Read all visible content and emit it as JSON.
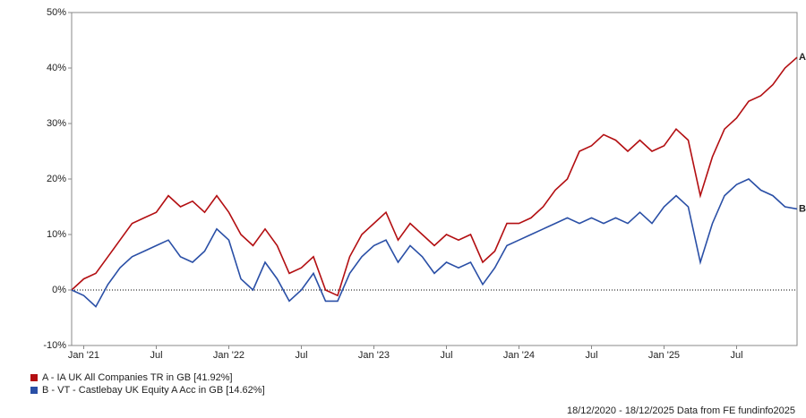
{
  "chart_data": {
    "type": "line",
    "categories": [
      null,
      "Jan '21",
      null,
      null,
      null,
      null,
      null,
      "Jul",
      null,
      null,
      null,
      null,
      null,
      "Jan '22",
      null,
      null,
      null,
      null,
      null,
      "Jul",
      null,
      null,
      null,
      null,
      null,
      "Jan '23",
      null,
      null,
      null,
      null,
      null,
      "Jul",
      null,
      null,
      null,
      null,
      null,
      "Jan '24",
      null,
      null,
      null,
      null,
      null,
      "Jul",
      null,
      null,
      null,
      null,
      null,
      "Jan '25",
      null,
      null,
      null,
      null,
      null,
      "Jul",
      null,
      null,
      null,
      null,
      null
    ],
    "series": [
      {
        "name": "A - IA UK All Companies TR in GB [41.92%]",
        "color": "#b30f12",
        "end_label": "A",
        "values": [
          0,
          2,
          3,
          6,
          9,
          12,
          13,
          14,
          17,
          15,
          16,
          14,
          17,
          14,
          10,
          8,
          11,
          8,
          3,
          4,
          6,
          0,
          -1,
          6,
          10,
          12,
          14,
          9,
          12,
          10,
          8,
          10,
          9,
          10,
          5,
          7,
          12,
          12,
          13,
          15,
          18,
          20,
          25,
          26,
          28,
          27,
          25,
          27,
          25,
          26,
          29,
          27,
          17,
          24,
          29,
          31,
          34,
          35,
          37,
          40,
          41.92
        ]
      },
      {
        "name": "B - VT - Castlebay UK Equity A Acc in GB [14.62%]",
        "color": "#2a4fa6",
        "end_label": "B",
        "values": [
          0,
          -1,
          -3,
          1,
          4,
          6,
          7,
          8,
          9,
          6,
          5,
          7,
          11,
          9,
          2,
          0,
          5,
          2,
          -2,
          0,
          3,
          -2,
          -2,
          3,
          6,
          8,
          9,
          5,
          8,
          6,
          3,
          5,
          4,
          5,
          1,
          4,
          8,
          9,
          10,
          11,
          12,
          13,
          12,
          13,
          12,
          13,
          12,
          14,
          12,
          15,
          17,
          15,
          5,
          12,
          17,
          19,
          20,
          18,
          17,
          15,
          14.62
        ]
      }
    ],
    "ylim": [
      -10,
      50
    ],
    "yticks": [
      {
        "value": -10,
        "label": "-10%"
      },
      {
        "value": 0,
        "label": "0%"
      },
      {
        "value": 10,
        "label": "10%"
      },
      {
        "value": 20,
        "label": "20%"
      },
      {
        "value": 30,
        "label": "30%"
      },
      {
        "value": 40,
        "label": "40%"
      },
      {
        "value": 50,
        "label": "50%"
      }
    ],
    "zero_line": true,
    "footer": "18/12/2020 - 18/12/2025 Data from FE fundinfo2025"
  }
}
